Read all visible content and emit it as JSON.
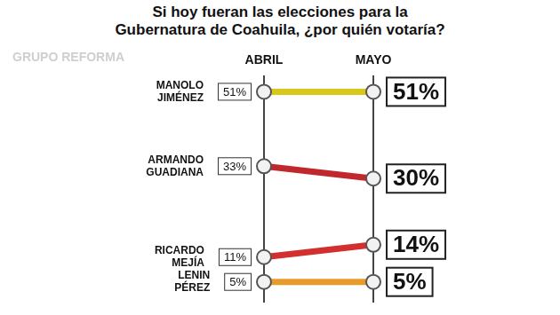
{
  "chart_data": {
    "type": "line",
    "title": "Si hoy fueran las elecciones para la Gubernatura de Coahuila, ¿por quién votaría?",
    "categories": [
      "ABRIL",
      "MAYO"
    ],
    "series": [
      {
        "name": "MANOLO JIMÉNEZ",
        "color": "#d8c81c",
        "values": [
          51,
          51
        ],
        "value_labels": [
          "51%",
          "51%"
        ]
      },
      {
        "name": "ARMANDO GUADIANA",
        "color": "#c0282d",
        "values": [
          33,
          30
        ],
        "value_labels": [
          "33%",
          "30%"
        ]
      },
      {
        "name": "RICARDO MEJÍA",
        "color": "#d32f2f",
        "values": [
          11,
          14
        ],
        "value_labels": [
          "11%",
          "14%"
        ]
      },
      {
        "name": "LENIN PÉREZ",
        "color": "#e89a2a",
        "values": [
          5,
          5
        ],
        "value_labels": [
          "5%",
          "5%"
        ]
      }
    ],
    "ylim": [
      0,
      55
    ],
    "tick_labels": "x",
    "grid": true,
    "data_labels": true,
    "annotations": [
      "GRUPO REFORMA"
    ]
  }
}
